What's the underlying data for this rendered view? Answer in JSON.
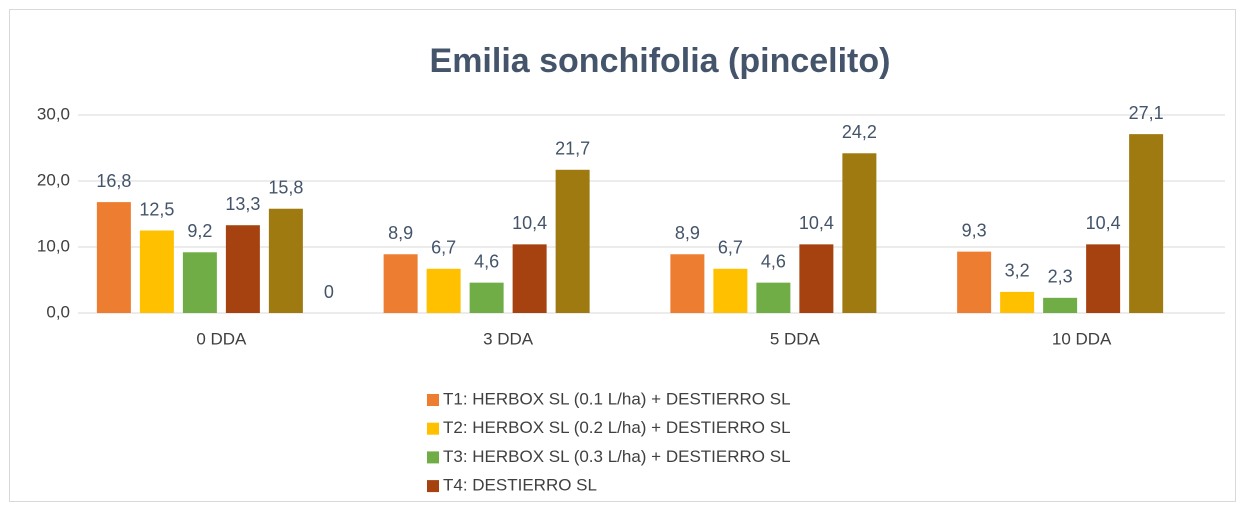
{
  "chart_data": {
    "type": "bar",
    "title": "Emilia sonchifolia (pincelito)",
    "categories": [
      "0 DDA",
      "3 DDA",
      "5 DDA",
      "10 DDA"
    ],
    "series": [
      {
        "name": "T1: HERBOX SL (0.1 L/ha) + DESTIERRO SL",
        "color": "#ed7d31",
        "values": [
          16.8,
          8.9,
          8.9,
          9.3
        ],
        "value_labels": [
          "16,8",
          "8,9",
          "8,9",
          "9,3"
        ]
      },
      {
        "name": "T2: HERBOX SL (0.2 L/ha) + DESTIERRO SL",
        "color": "#ffc000",
        "values": [
          12.5,
          6.7,
          6.7,
          3.2
        ],
        "value_labels": [
          "12,5",
          "6,7",
          "6,7",
          "3,2"
        ]
      },
      {
        "name": "T3: HERBOX SL (0.3 L/ha) + DESTIERRO SL",
        "color": "#70ad47",
        "values": [
          9.2,
          4.6,
          4.6,
          2.3
        ],
        "value_labels": [
          "9,2",
          "4,6",
          "4,6",
          "2,3"
        ]
      },
      {
        "name": "T4: DESTIERRO SL",
        "color": "#a5420f",
        "values": [
          13.3,
          10.4,
          10.4,
          10.4
        ],
        "value_labels": [
          "13,3",
          "10,4",
          "10,4",
          "10,4"
        ]
      },
      {
        "color": "#9e7a10",
        "values": [
          15.8,
          21.7,
          24.2,
          27.1
        ],
        "value_labels": [
          "15,8",
          "21,7",
          "24,2",
          "27,1"
        ]
      },
      {
        "color": "#7f7f7f",
        "values": [
          0,
          null,
          null,
          null
        ]
      }
    ],
    "ylim": [
      0,
      30
    ],
    "yticks": [
      {
        "value": 0,
        "label": "0,0"
      },
      {
        "value": 10,
        "label": "10,0"
      },
      {
        "value": 20,
        "label": "20,0"
      },
      {
        "value": 30,
        "label": "30,0"
      }
    ],
    "grid": true,
    "legend": "bottom"
  }
}
